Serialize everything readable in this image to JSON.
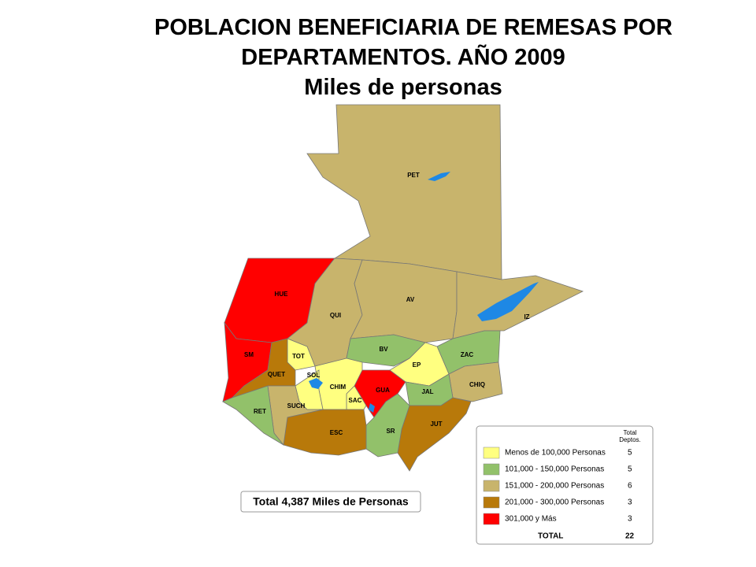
{
  "title": {
    "line1": "POBLACION BENEFICIARIA DE REMESAS POR",
    "line2": "DEPARTAMENTOS. AÑO 2009"
  },
  "subtitle": "Miles de personas",
  "departments": [
    {
      "label": "PET",
      "color": "#c8b46c"
    },
    {
      "label": "HUE",
      "color": "#ff0000"
    },
    {
      "label": "SM",
      "color": "#ff0000"
    },
    {
      "label": "QUI",
      "color": "#c8b46c"
    },
    {
      "label": "AV",
      "color": "#c8b46c"
    },
    {
      "label": "IZ",
      "color": "#c8b46c"
    },
    {
      "label": "ZAC",
      "color": "#92c16a"
    },
    {
      "label": "BV",
      "color": "#92c16a"
    },
    {
      "label": "EP",
      "color": "#ffff80"
    },
    {
      "label": "CHIQ",
      "color": "#c8b46c"
    },
    {
      "label": "JAL",
      "color": "#92c16a"
    },
    {
      "label": "JUT",
      "color": "#b8790a"
    },
    {
      "label": "GUA",
      "color": "#ff0000"
    },
    {
      "label": "SR",
      "color": "#92c16a"
    },
    {
      "label": "SAC",
      "color": "#ffff80"
    },
    {
      "label": "CHIM",
      "color": "#ffff80"
    },
    {
      "label": "ESC",
      "color": "#b8790a"
    },
    {
      "label": "SOL",
      "color": "#ffff80"
    },
    {
      "label": "TOT",
      "color": "#ffff80"
    },
    {
      "label": "QUET",
      "color": "#b8790a"
    },
    {
      "label": "SUCH",
      "color": "#c8b46c"
    },
    {
      "label": "RET",
      "color": "#92c16a"
    }
  ],
  "legend": {
    "header": {
      "line1": "Total",
      "line2": "Deptos."
    },
    "entries": [
      {
        "label": "Menos de 100,000 Personas",
        "color": "#ffff80",
        "count": 5
      },
      {
        "label": "101,000 - 150,000 Personas",
        "color": "#92c16a",
        "count": 5
      },
      {
        "label": "151,000 - 200,000 Personas",
        "color": "#c8b46c",
        "count": 6
      },
      {
        "label": "201,000 - 300,000 Personas",
        "color": "#b8790a",
        "count": 3
      },
      {
        "label": "301,000 y Más",
        "color": "#ff0000",
        "count": 3
      }
    ],
    "total_label": "TOTAL",
    "total": 22
  },
  "total_box": "Total 4,387 Miles de Personas"
}
